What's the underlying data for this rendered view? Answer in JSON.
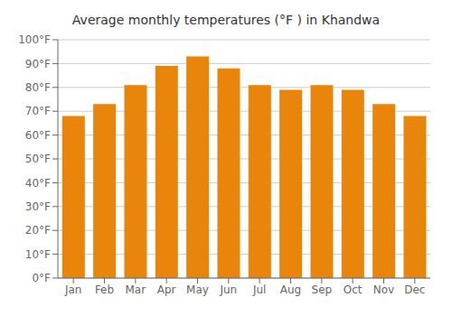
{
  "chart_data": {
    "type": "bar",
    "title": "Average monthly temperatures (°F ) in Khandwa",
    "categories": [
      "Jan",
      "Feb",
      "Mar",
      "Apr",
      "May",
      "Jun",
      "Jul",
      "Aug",
      "Sep",
      "Oct",
      "Nov",
      "Dec"
    ],
    "values": [
      68,
      73,
      81,
      89,
      93,
      88,
      81,
      79,
      81,
      79,
      73,
      68
    ],
    "color": "#E8850A",
    "ylim": [
      0,
      100
    ],
    "yticks": [
      {
        "value": 0,
        "label": "0°F"
      },
      {
        "value": 10,
        "label": "10°F"
      },
      {
        "value": 20,
        "label": "20°F"
      },
      {
        "value": 30,
        "label": "30°F"
      },
      {
        "value": 40,
        "label": "40°F"
      },
      {
        "value": 50,
        "label": "50°F"
      },
      {
        "value": 60,
        "label": "60°F"
      },
      {
        "value": 70,
        "label": "70°F"
      },
      {
        "value": 80,
        "label": "80°F"
      },
      {
        "value": 90,
        "label": "90°F"
      },
      {
        "value": 100,
        "label": "100°F"
      }
    ],
    "grid": true
  }
}
